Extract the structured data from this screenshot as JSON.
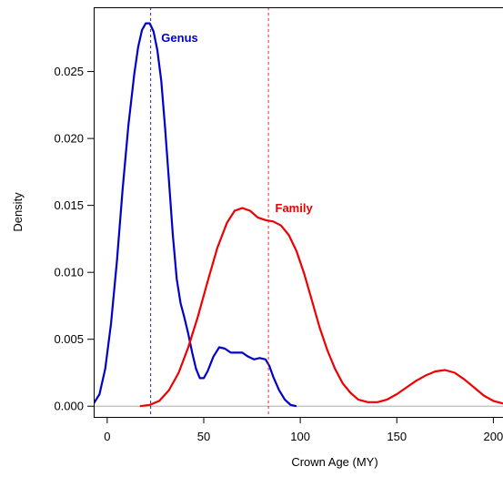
{
  "chart_data": {
    "type": "line",
    "xlabel": "Crown Age (MY)",
    "ylabel": "Density",
    "xlim": [
      -7,
      205
    ],
    "ylim": [
      -0.0008,
      0.0298
    ],
    "xticks": [
      0,
      50,
      100,
      150,
      200
    ],
    "yticks": [
      0.0,
      0.005,
      0.01,
      0.015,
      0.02,
      0.025
    ],
    "ytick_labels": [
      "0.000",
      "0.005",
      "0.010",
      "0.015",
      "0.020",
      "0.025"
    ],
    "baseline": 0,
    "baseline_color": "#bbbbbb",
    "series": [
      {
        "name": "Genus",
        "color": "#0000cc",
        "mean": 22.5,
        "label_at": {
          "x": 28,
          "y": 0.0272
        },
        "points": [
          [
            -7,
            0.0002
          ],
          [
            -4,
            0.0009
          ],
          [
            -1,
            0.0028
          ],
          [
            2,
            0.0062
          ],
          [
            5,
            0.0108
          ],
          [
            8,
            0.0162
          ],
          [
            11,
            0.021
          ],
          [
            14,
            0.0248
          ],
          [
            16,
            0.0268
          ],
          [
            18,
            0.0281
          ],
          [
            20,
            0.0286
          ],
          [
            22,
            0.0286
          ],
          [
            24,
            0.028
          ],
          [
            26,
            0.0266
          ],
          [
            28,
            0.0243
          ],
          [
            30,
            0.0208
          ],
          [
            32,
            0.0168
          ],
          [
            34,
            0.0128
          ],
          [
            36,
            0.0095
          ],
          [
            38,
            0.0077
          ],
          [
            40,
            0.0066
          ],
          [
            42,
            0.0054
          ],
          [
            44,
            0.004
          ],
          [
            46,
            0.0028
          ],
          [
            48,
            0.0021
          ],
          [
            50,
            0.0021
          ],
          [
            52,
            0.0026
          ],
          [
            55,
            0.0037
          ],
          [
            58,
            0.0044
          ],
          [
            61,
            0.0043
          ],
          [
            64,
            0.004
          ],
          [
            67,
            0.004
          ],
          [
            70,
            0.004
          ],
          [
            73,
            0.0037
          ],
          [
            76,
            0.0035
          ],
          [
            79,
            0.0036
          ],
          [
            82,
            0.0035
          ],
          [
            84,
            0.003
          ],
          [
            86,
            0.0022
          ],
          [
            89,
            0.0012
          ],
          [
            92,
            0.0005
          ],
          [
            95,
            0.0001
          ],
          [
            98,
            0.0
          ]
        ]
      },
      {
        "name": "Family",
        "color": "#ee0000",
        "mean": 83.5,
        "label_at": {
          "x": 87,
          "y": 0.0145
        },
        "points": [
          [
            17,
            0.0
          ],
          [
            22,
            0.0001
          ],
          [
            27,
            0.0004
          ],
          [
            32,
            0.0012
          ],
          [
            37,
            0.0025
          ],
          [
            42,
            0.0044
          ],
          [
            47,
            0.0067
          ],
          [
            52,
            0.0093
          ],
          [
            57,
            0.0118
          ],
          [
            62,
            0.0137
          ],
          [
            66,
            0.0146
          ],
          [
            70,
            0.0148
          ],
          [
            74,
            0.0146
          ],
          [
            78,
            0.0141
          ],
          [
            82,
            0.0139
          ],
          [
            86,
            0.0138
          ],
          [
            90,
            0.0135
          ],
          [
            94,
            0.0128
          ],
          [
            98,
            0.0116
          ],
          [
            102,
            0.0099
          ],
          [
            106,
            0.0079
          ],
          [
            110,
            0.0059
          ],
          [
            114,
            0.0042
          ],
          [
            118,
            0.0028
          ],
          [
            122,
            0.0017
          ],
          [
            126,
            0.001
          ],
          [
            130,
            0.0005
          ],
          [
            135,
            0.0003
          ],
          [
            140,
            0.0003
          ],
          [
            145,
            0.0005
          ],
          [
            150,
            0.0009
          ],
          [
            155,
            0.0014
          ],
          [
            160,
            0.0019
          ],
          [
            165,
            0.0023
          ],
          [
            170,
            0.0026
          ],
          [
            175,
            0.0027
          ],
          [
            180,
            0.0025
          ],
          [
            185,
            0.002
          ],
          [
            190,
            0.0014
          ],
          [
            195,
            0.0008
          ],
          [
            200,
            0.0004
          ],
          [
            205,
            0.0002
          ]
        ]
      }
    ]
  }
}
